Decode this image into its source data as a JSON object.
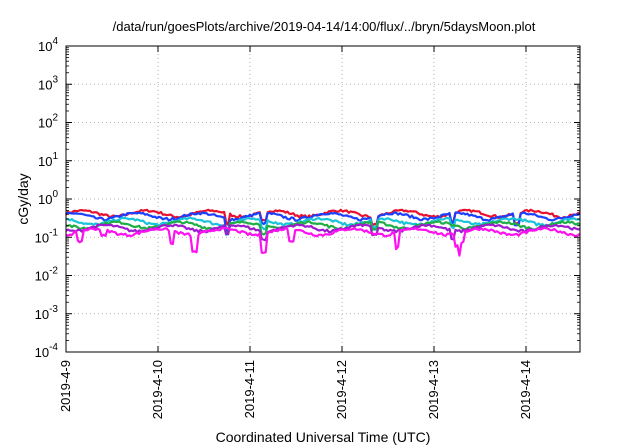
{
  "chart_data": {
    "type": "line",
    "title": "/data/run/goesPlots/archive/2019-04-14/14:00/flux/../bryn/5daysMoon.plot",
    "xlabel": "Coordinated Universal Time (UTC)",
    "ylabel": "cGy/day",
    "y_scale": "log",
    "ylim": [
      0.0001,
      10000
    ],
    "y_ticks": [
      {
        "base": "10",
        "exp": "-4"
      },
      {
        "base": "10",
        "exp": "-3"
      },
      {
        "base": "10",
        "exp": "-2"
      },
      {
        "base": "10",
        "exp": "-1"
      },
      {
        "base": "10",
        "exp": "0"
      },
      {
        "base": "10",
        "exp": "1"
      },
      {
        "base": "10",
        "exp": "2"
      },
      {
        "base": "10",
        "exp": "3"
      },
      {
        "base": "10",
        "exp": "4"
      }
    ],
    "xlim": [
      "2019-04-09",
      "2019-04-14 14:00"
    ],
    "x_ticks": [
      "2019-4-9",
      "2019-4-10",
      "2019-4-11",
      "2019-4-12",
      "2019-4-13",
      "2019-4-14"
    ],
    "grid": true,
    "series": [
      {
        "color": "#e8112d",
        "level": 0.42,
        "dips": [
          [
            1.75,
            0.55
          ],
          [
            2.15,
            0.6
          ],
          [
            3.35,
            0.6
          ],
          [
            4.2,
            0.6
          ],
          [
            4.9,
            0.55
          ]
        ]
      },
      {
        "color": "#1b3fff",
        "level": 0.36,
        "dips": [
          [
            1.75,
            0.5
          ],
          [
            2.15,
            0.55
          ],
          [
            3.35,
            0.55
          ],
          [
            4.2,
            0.55
          ],
          [
            4.9,
            0.5
          ]
        ]
      },
      {
        "color": "#19c3d8",
        "level": 0.26,
        "dips": [
          [
            1.75,
            0.55
          ],
          [
            2.15,
            0.6
          ],
          [
            3.35,
            0.6
          ],
          [
            4.2,
            0.6
          ]
        ]
      },
      {
        "color": "#1fae45",
        "level": 0.21,
        "dips": [
          [
            1.75,
            0.6
          ],
          [
            2.15,
            0.65
          ],
          [
            3.35,
            0.65
          ]
        ]
      },
      {
        "color": "#a01bd0",
        "level": 0.175,
        "dips": [
          [
            1.75,
            0.6
          ],
          [
            2.15,
            0.6
          ],
          [
            3.35,
            0.6
          ],
          [
            4.2,
            0.6
          ]
        ]
      },
      {
        "color": "#ff10f0",
        "level": 0.14,
        "dips": [
          [
            0.15,
            0.55
          ],
          [
            0.4,
            0.7
          ],
          [
            1.15,
            0.45
          ],
          [
            1.4,
            0.35
          ],
          [
            2.15,
            0.35
          ],
          [
            2.45,
            0.5
          ],
          [
            3.6,
            0.4
          ],
          [
            4.25,
            0.5
          ],
          [
            4.3,
            0.55
          ]
        ]
      }
    ]
  }
}
